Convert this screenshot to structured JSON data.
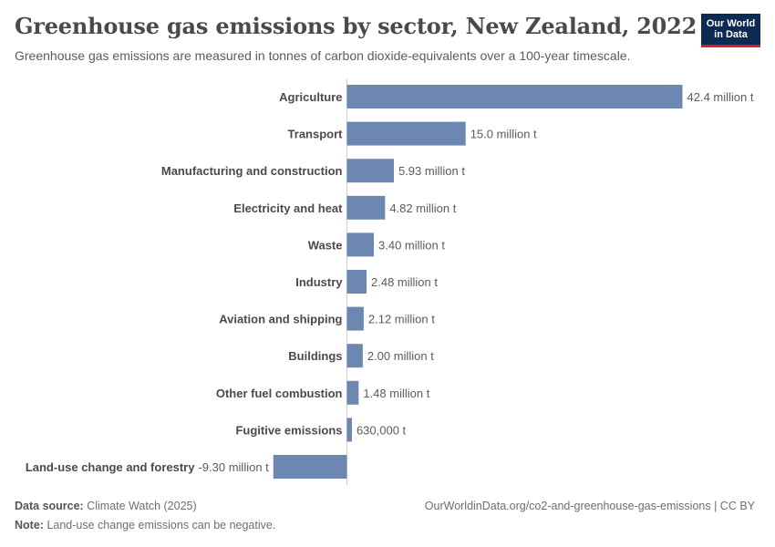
{
  "header": {
    "title": "Greenhouse gas emissions by sector, New Zealand, 2022",
    "subtitle": "Greenhouse gas emissions are measured in tonnes of carbon dioxide-equivalents over a 100-year timescale.",
    "logo_line1": "Our World",
    "logo_line2": "in Data"
  },
  "footer": {
    "source_label": "Data source:",
    "source_value": "Climate Watch (2025)",
    "url": "OurWorldinData.org/co2-and-greenhouse-gas-emissions | CC BY",
    "note_label": "Note:",
    "note_value": "Land-use change emissions can be negative."
  },
  "colors": {
    "bar": "#6d87b3",
    "axis": "#cfcfcf",
    "label": "#4a4a4a",
    "value": "#5b5b5b"
  },
  "chart_data": {
    "type": "bar",
    "orientation": "horizontal",
    "unit": "t",
    "categories": [
      "Agriculture",
      "Transport",
      "Manufacturing and construction",
      "Electricity and heat",
      "Waste",
      "Industry",
      "Aviation and shipping",
      "Buildings",
      "Other fuel combustion",
      "Fugitive emissions",
      "Land-use change and forestry"
    ],
    "values": [
      42400000,
      15000000,
      5930000,
      4820000,
      3400000,
      2480000,
      2120000,
      2000000,
      1480000,
      630000,
      -9300000
    ],
    "value_labels": [
      "42.4 million t",
      "15.0 million t",
      "5.93 million t",
      "4.82 million t",
      "3.40 million t",
      "2.48 million t",
      "2.12 million t",
      "2.00 million t",
      "1.48 million t",
      "630,000 t",
      "-9.30 million t"
    ]
  }
}
